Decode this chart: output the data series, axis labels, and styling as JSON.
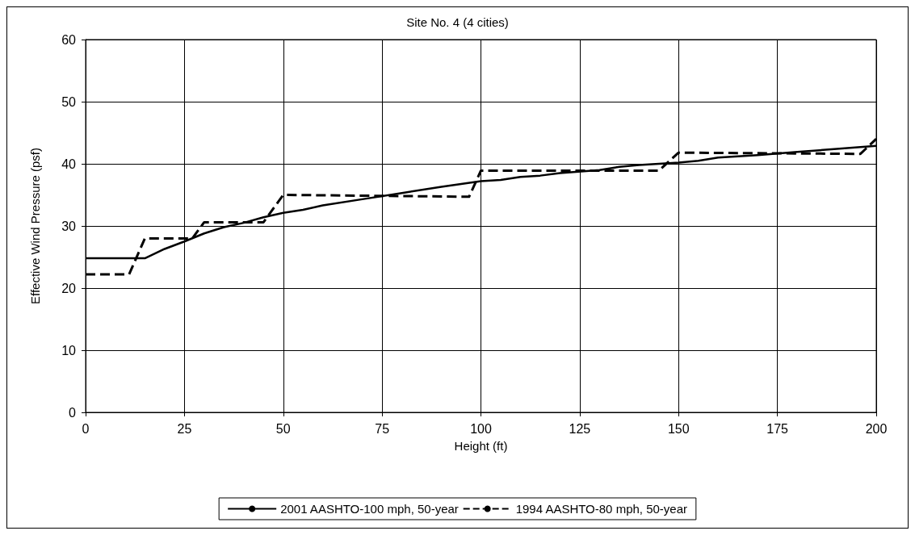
{
  "chart_data": {
    "type": "line",
    "title": "Site No. 4 (4 cities)",
    "xlabel": "Height (ft)",
    "ylabel": "Effective Wind Pressure (psf)",
    "xlim": [
      0,
      200
    ],
    "xticks": [
      0,
      25,
      50,
      75,
      100,
      125,
      150,
      175,
      200
    ],
    "ylim": [
      0,
      60
    ],
    "yticks": [
      0,
      10,
      20,
      30,
      40,
      50,
      60
    ],
    "grid": true,
    "legend": "bottom",
    "marker": "none",
    "series": [
      {
        "name": "2001 AASHTO-100 mph, 50-year",
        "color": "#000000",
        "line_style": "solid",
        "x": [
          0,
          15,
          20,
          25,
          30,
          35,
          40,
          45,
          50,
          55,
          60,
          70,
          80,
          90,
          100,
          105,
          110,
          115,
          120,
          130,
          135,
          140,
          150,
          155,
          160,
          170,
          180,
          190,
          200
        ],
        "values": [
          24.8,
          24.8,
          26.3,
          27.5,
          28.8,
          29.8,
          30.5,
          31.4,
          32.1,
          32.6,
          33.3,
          34.3,
          35.3,
          36.3,
          37.2,
          37.4,
          37.9,
          38.1,
          38.5,
          39,
          39.5,
          39.8,
          40.2,
          40.5,
          41,
          41.4,
          41.9,
          42.4,
          42.9
        ]
      },
      {
        "name": "1994 AASHTO-80 mph, 50-year",
        "color": "#000000",
        "line_style": "dashed",
        "x": [
          0,
          11,
          15,
          27,
          30,
          45,
          50,
          97,
          100,
          145,
          150,
          196,
          200
        ],
        "values": [
          22.2,
          22.2,
          28,
          28,
          30.6,
          30.6,
          35,
          34.7,
          38.9,
          38.9,
          41.8,
          41.6,
          44
        ]
      }
    ]
  }
}
